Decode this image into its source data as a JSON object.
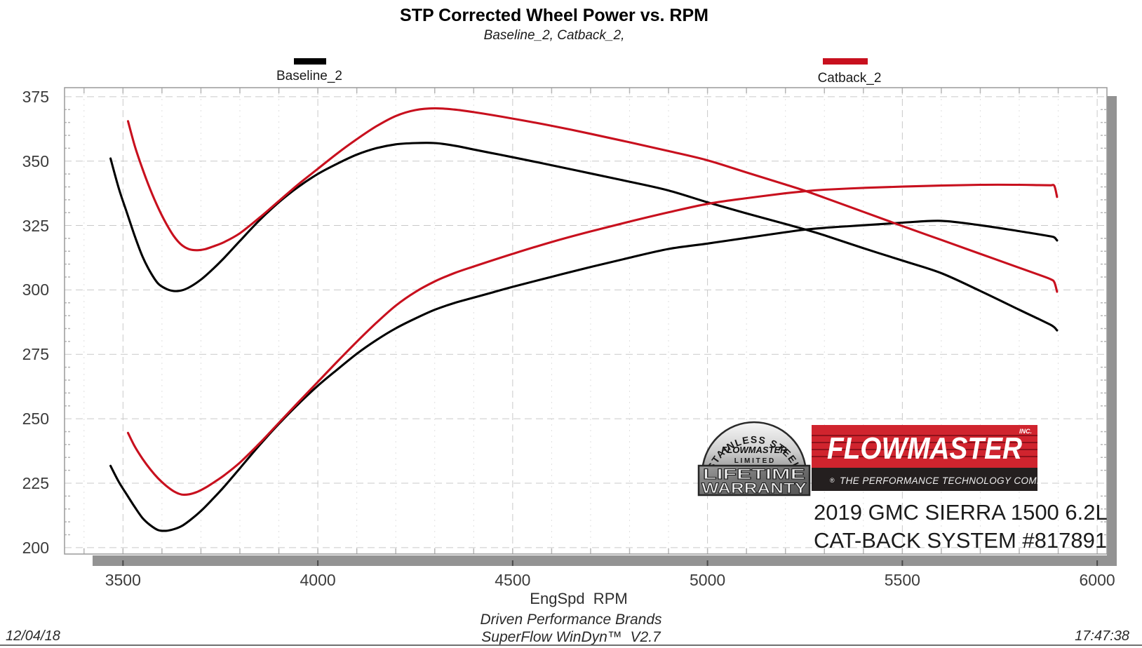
{
  "header": {
    "title": "STP Corrected Wheel Power vs. RPM",
    "subtitle": "Baseline_2, Catback_2,"
  },
  "footer": {
    "brand_line": "Driven Performance Brands",
    "software_line": "SuperFlow WinDyn™  V2.7",
    "date": "12/04/18",
    "time": "17:47:38"
  },
  "branding": {
    "badge": {
      "arc_text": "STAINLESS STEEL",
      "brand": "FLOWMASTER",
      "limited": "L I M I T E D",
      "line1": "LIFETIME",
      "line2": "WARRANTY"
    },
    "logo": {
      "brand": "FLOWMASTER",
      "inc": "INC.",
      "registered": "®",
      "tagline": "THE PERFORMANCE TECHNOLOGY COMPANY",
      "red": "#d0242e",
      "stripe_red": "#8d111b",
      "black": "#241f1f"
    }
  },
  "vehicle": {
    "line1": "2019 GMC SIERRA 1500 6.2L",
    "line2": "CAT-BACK SYSTEM #817891"
  },
  "chart_data": {
    "type": "line",
    "title": "STP Corrected Wheel Power vs. RPM",
    "subtitle": "Baseline_2, Catback_2,",
    "xlabel": "EngSpd  RPM",
    "ylabel": "",
    "x_range": [
      3350,
      6025
    ],
    "y_range": [
      197.5,
      378.5
    ],
    "x_major_ticks": [
      3500,
      4000,
      4500,
      5000,
      5500,
      6000
    ],
    "x_minor_step": 100,
    "y_major_ticks": [
      200,
      225,
      250,
      275,
      300,
      325,
      350,
      375
    ],
    "y_minor_step": 5,
    "grid": "on",
    "legend_position": "top",
    "legend": [
      {
        "name": "Baseline_2",
        "color": "#000000"
      },
      {
        "name": "Catback_2",
        "color": "#c8101e"
      }
    ],
    "series": [
      {
        "name": "Baseline_2 torque (lb-ft)",
        "color": "#000000",
        "points": [
          [
            3468,
            351
          ],
          [
            3490,
            339
          ],
          [
            3510,
            330
          ],
          [
            3530,
            321
          ],
          [
            3550,
            313
          ],
          [
            3570,
            307
          ],
          [
            3590,
            302.5
          ],
          [
            3610,
            300.5
          ],
          [
            3630,
            299.6
          ],
          [
            3650,
            299.8
          ],
          [
            3670,
            301
          ],
          [
            3700,
            304
          ],
          [
            3730,
            308
          ],
          [
            3760,
            312.5
          ],
          [
            3800,
            319
          ],
          [
            3850,
            327
          ],
          [
            3900,
            334
          ],
          [
            3950,
            340
          ],
          [
            4000,
            345
          ],
          [
            4050,
            349
          ],
          [
            4100,
            352.5
          ],
          [
            4150,
            355
          ],
          [
            4200,
            356.5
          ],
          [
            4250,
            357
          ],
          [
            4300,
            357
          ],
          [
            4350,
            356
          ],
          [
            4400,
            354.5
          ],
          [
            4450,
            353
          ],
          [
            4500,
            351.5
          ],
          [
            4600,
            348.4
          ],
          [
            4700,
            345.2
          ],
          [
            4800,
            342
          ],
          [
            4900,
            338.6
          ],
          [
            5000,
            334
          ],
          [
            5100,
            329.7
          ],
          [
            5200,
            325.6
          ],
          [
            5250,
            323.5
          ],
          [
            5300,
            321.2
          ],
          [
            5400,
            316.2
          ],
          [
            5500,
            311.4
          ],
          [
            5600,
            306.5
          ],
          [
            5700,
            299.6
          ],
          [
            5800,
            292.3
          ],
          [
            5850,
            288.7
          ],
          [
            5880,
            286.5
          ],
          [
            5890,
            285.5
          ],
          [
            5897,
            284.3
          ]
        ]
      },
      {
        "name": "Baseline_2 power (hp)",
        "color": "#000000",
        "points": [
          [
            3468,
            231.7
          ],
          [
            3490,
            225.3
          ],
          [
            3510,
            220.5
          ],
          [
            3530,
            215.8
          ],
          [
            3550,
            211.5
          ],
          [
            3570,
            208.7
          ],
          [
            3590,
            206.8
          ],
          [
            3610,
            206.5
          ],
          [
            3630,
            207.1
          ],
          [
            3650,
            208.3
          ],
          [
            3670,
            210.4
          ],
          [
            3700,
            214.2
          ],
          [
            3730,
            218.8
          ],
          [
            3760,
            223.7
          ],
          [
            3800,
            230.8
          ],
          [
            3850,
            239.7
          ],
          [
            3900,
            248.0
          ],
          [
            3950,
            255.7
          ],
          [
            4000,
            262.8
          ],
          [
            4050,
            269.1
          ],
          [
            4100,
            275.2
          ],
          [
            4150,
            280.5
          ],
          [
            4200,
            285.1
          ],
          [
            4250,
            288.9
          ],
          [
            4300,
            292.3
          ],
          [
            4350,
            294.9
          ],
          [
            4400,
            297.0
          ],
          [
            4450,
            299.1
          ],
          [
            4500,
            301.2
          ],
          [
            4600,
            305.1
          ],
          [
            4700,
            308.9
          ],
          [
            4800,
            312.5
          ],
          [
            4900,
            315.9
          ],
          [
            5000,
            318.0
          ],
          [
            5100,
            320.2
          ],
          [
            5200,
            322.4
          ],
          [
            5250,
            323.4
          ],
          [
            5300,
            324.1
          ],
          [
            5400,
            325.1
          ],
          [
            5500,
            326.1
          ],
          [
            5600,
            326.8
          ],
          [
            5700,
            325.1
          ],
          [
            5800,
            322.8
          ],
          [
            5850,
            321.6
          ],
          [
            5880,
            320.8
          ],
          [
            5890,
            320.4
          ],
          [
            5897,
            319.2
          ]
        ]
      },
      {
        "name": "Catback_2 torque (lb-ft)",
        "color": "#c8101e",
        "points": [
          [
            3513,
            365.5
          ],
          [
            3530,
            356
          ],
          [
            3550,
            347
          ],
          [
            3570,
            339
          ],
          [
            3590,
            332
          ],
          [
            3610,
            326
          ],
          [
            3630,
            321
          ],
          [
            3650,
            317.5
          ],
          [
            3670,
            315.8
          ],
          [
            3690,
            315.4
          ],
          [
            3710,
            315.8
          ],
          [
            3730,
            316.8
          ],
          [
            3760,
            318.6
          ],
          [
            3800,
            322
          ],
          [
            3850,
            328
          ],
          [
            3900,
            334.5
          ],
          [
            3950,
            341
          ],
          [
            4000,
            347
          ],
          [
            4050,
            353
          ],
          [
            4100,
            358.5
          ],
          [
            4150,
            363.5
          ],
          [
            4200,
            367.5
          ],
          [
            4250,
            369.8
          ],
          [
            4300,
            370.5
          ],
          [
            4350,
            370
          ],
          [
            4400,
            369
          ],
          [
            4500,
            366.5
          ],
          [
            4600,
            363.7
          ],
          [
            4700,
            360.6
          ],
          [
            4800,
            357.3
          ],
          [
            4900,
            353.9
          ],
          [
            5000,
            350.3
          ],
          [
            5100,
            345.6
          ],
          [
            5200,
            340.9
          ],
          [
            5250,
            338.5
          ],
          [
            5300,
            335.8
          ],
          [
            5400,
            330.3
          ],
          [
            5500,
            324.8
          ],
          [
            5600,
            319.4
          ],
          [
            5700,
            314.0
          ],
          [
            5800,
            308.6
          ],
          [
            5850,
            305.9
          ],
          [
            5880,
            304.2
          ],
          [
            5890,
            303.0
          ],
          [
            5897,
            299.3
          ]
        ]
      },
      {
        "name": "Catback_2 power (hp)",
        "color": "#c8101e",
        "points": [
          [
            3513,
            244.5
          ],
          [
            3530,
            239.3
          ],
          [
            3550,
            234.5
          ],
          [
            3570,
            230.4
          ],
          [
            3590,
            226.9
          ],
          [
            3610,
            224.1
          ],
          [
            3630,
            221.9
          ],
          [
            3650,
            220.6
          ],
          [
            3670,
            220.7
          ],
          [
            3690,
            221.6
          ],
          [
            3710,
            223.1
          ],
          [
            3730,
            225.0
          ],
          [
            3760,
            228.1
          ],
          [
            3800,
            233.0
          ],
          [
            3850,
            240.4
          ],
          [
            3900,
            248.4
          ],
          [
            3950,
            256.4
          ],
          [
            4000,
            264.3
          ],
          [
            4050,
            272.2
          ],
          [
            4100,
            279.9
          ],
          [
            4150,
            287.2
          ],
          [
            4200,
            293.9
          ],
          [
            4250,
            299.2
          ],
          [
            4300,
            303.3
          ],
          [
            4350,
            306.5
          ],
          [
            4400,
            309.1
          ],
          [
            4500,
            314.0
          ],
          [
            4600,
            318.6
          ],
          [
            4700,
            322.7
          ],
          [
            4800,
            326.5
          ],
          [
            4900,
            330.1
          ],
          [
            5000,
            333.4
          ],
          [
            5100,
            335.6
          ],
          [
            5200,
            337.5
          ],
          [
            5250,
            338.3
          ],
          [
            5300,
            338.9
          ],
          [
            5400,
            339.6
          ],
          [
            5500,
            340.1
          ],
          [
            5600,
            340.5
          ],
          [
            5700,
            340.8
          ],
          [
            5800,
            340.8
          ],
          [
            5850,
            340.7
          ],
          [
            5880,
            340.6
          ],
          [
            5890,
            340.4
          ],
          [
            5897,
            336.1
          ]
        ]
      }
    ]
  }
}
